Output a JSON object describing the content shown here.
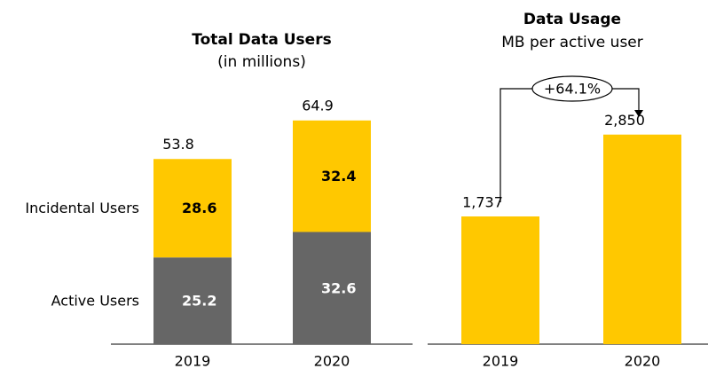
{
  "chart_data": [
    {
      "type": "stacked_bar",
      "title": "Total Data Users",
      "subtitle": "(in millions)",
      "categories": [
        "2019",
        "2020"
      ],
      "series": [
        {
          "name": "Active Users",
          "color": "#666666",
          "values": [
            25.2,
            32.6
          ]
        },
        {
          "name": "Incidental Users",
          "color": "#ffc800",
          "values": [
            28.6,
            32.4
          ]
        }
      ],
      "totals": [
        53.8,
        64.9
      ]
    },
    {
      "type": "bar",
      "title": "Data Usage",
      "subtitle": "MB per active user",
      "categories": [
        "2019",
        "2020"
      ],
      "values": [
        1737,
        2850
      ],
      "value_labels": [
        "1,737",
        "2,850"
      ],
      "color": "#ffc800",
      "annotation": "+64.1%"
    }
  ]
}
